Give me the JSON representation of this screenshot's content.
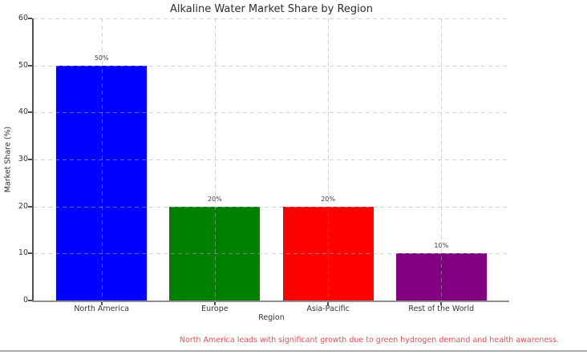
{
  "chart_data": {
    "type": "bar",
    "title": "Alkaline Water Market Share by Region",
    "xlabel": "Region",
    "ylabel": "Market Share (%)",
    "categories": [
      "North America",
      "Europe",
      "Asia-Pacific",
      "Rest of the World"
    ],
    "values": [
      50,
      20,
      20,
      10
    ],
    "bar_labels": [
      "50%",
      "20%",
      "20%",
      "10%"
    ],
    "bar_colors": [
      "#0000ff",
      "#008000",
      "#ff0000",
      "#800080"
    ],
    "ylim": [
      0,
      60
    ],
    "yticks": [
      0,
      10,
      20,
      30,
      40,
      50,
      60
    ],
    "xlim": [
      -0.6,
      3.6
    ],
    "bar_width_fraction": 0.8,
    "grid": "dashed",
    "legend": "none",
    "annotation": {
      "text": "North America leads with significant growth due to green hydrogen demand and health awareness.",
      "color": "#e85353"
    }
  }
}
